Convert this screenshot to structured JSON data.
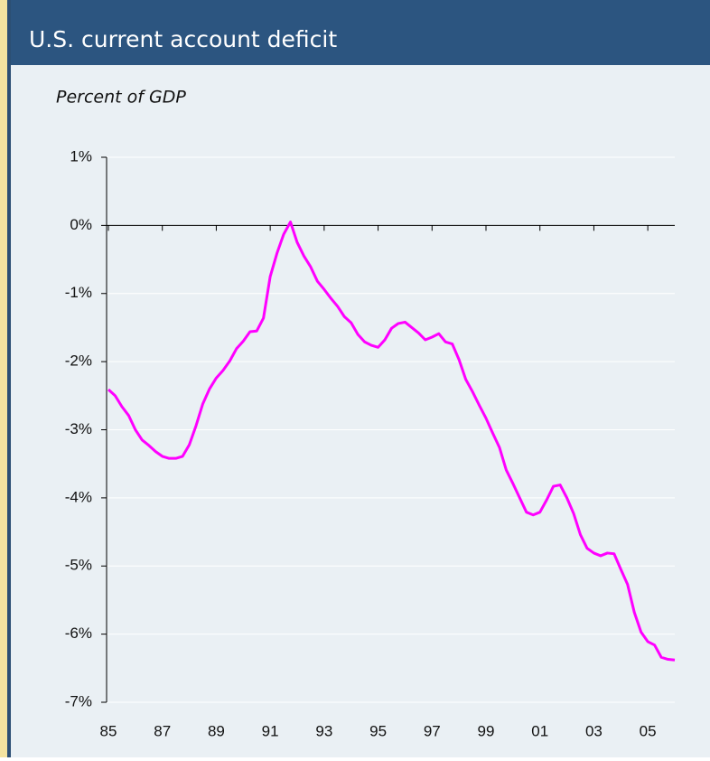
{
  "chart_data": {
    "type": "line",
    "title": "U.S. current account deficit",
    "subtitle": "Percent of GDP",
    "x": [
      1985,
      1985.25,
      1985.5,
      1985.75,
      1986,
      1986.25,
      1986.5,
      1986.75,
      1987,
      1987.25,
      1987.5,
      1987.75,
      1988,
      1988.25,
      1988.5,
      1988.75,
      1989,
      1989.25,
      1989.5,
      1989.75,
      1990,
      1990.25,
      1990.5,
      1990.75,
      1991,
      1991.25,
      1991.5,
      1991.75,
      1992,
      1992.25,
      1992.5,
      1992.75,
      1993,
      1993.25,
      1993.5,
      1993.75,
      1994,
      1994.25,
      1994.5,
      1994.75,
      1995,
      1995.25,
      1995.5,
      1995.75,
      1996,
      1996.25,
      1996.5,
      1996.75,
      1997,
      1997.25,
      1997.5,
      1997.75,
      1998,
      1998.25,
      1998.5,
      1998.75,
      1999,
      1999.25,
      1999.5,
      1999.75,
      2000,
      2000.25,
      2000.5,
      2000.75,
      2001,
      2001.25,
      2001.5,
      2001.75,
      2002,
      2002.25,
      2002.5,
      2002.75,
      2003,
      2003.25,
      2003.5,
      2003.75,
      2004,
      2004.25,
      2004.5,
      2004.75,
      2005,
      2005.25,
      2005.5,
      2005.75,
      2006
    ],
    "values": [
      -2.41,
      -2.5,
      -2.66,
      -2.79,
      -3.0,
      -3.15,
      -3.23,
      -3.32,
      -3.39,
      -3.42,
      -3.42,
      -3.39,
      -3.22,
      -2.94,
      -2.62,
      -2.4,
      -2.24,
      -2.13,
      -1.99,
      -1.81,
      -1.7,
      -1.56,
      -1.55,
      -1.36,
      -0.75,
      -0.41,
      -0.13,
      0.05,
      -0.25,
      -0.45,
      -0.61,
      -0.82,
      -0.94,
      -1.07,
      -1.19,
      -1.34,
      -1.43,
      -1.6,
      -1.71,
      -1.76,
      -1.79,
      -1.68,
      -1.51,
      -1.44,
      -1.42,
      -1.5,
      -1.58,
      -1.68,
      -1.64,
      -1.59,
      -1.71,
      -1.74,
      -1.97,
      -2.26,
      -2.44,
      -2.64,
      -2.83,
      -3.05,
      -3.26,
      -3.59,
      -3.79,
      -4.0,
      -4.21,
      -4.25,
      -4.21,
      -4.03,
      -3.83,
      -3.81,
      -4.0,
      -4.23,
      -4.54,
      -4.74,
      -4.81,
      -4.85,
      -4.81,
      -4.82,
      -5.05,
      -5.27,
      -5.68,
      -5.97,
      -6.11,
      -6.16,
      -6.34,
      -6.37,
      -6.38
    ],
    "color": "#ff00ff",
    "xlim": [
      1985,
      2006
    ],
    "xticks": [
      {
        "value": 1985,
        "label": "85"
      },
      {
        "value": 1987,
        "label": "87"
      },
      {
        "value": 1989,
        "label": "89"
      },
      {
        "value": 1991,
        "label": "91"
      },
      {
        "value": 1993,
        "label": "93"
      },
      {
        "value": 1995,
        "label": "95"
      },
      {
        "value": 1997,
        "label": "97"
      },
      {
        "value": 1999,
        "label": "99"
      },
      {
        "value": 2001,
        "label": "01"
      },
      {
        "value": 2003,
        "label": "03"
      },
      {
        "value": 2005,
        "label": "05"
      }
    ],
    "ylim": [
      -7,
      1
    ],
    "yticks": [
      {
        "value": 1,
        "label": "1%"
      },
      {
        "value": 0,
        "label": "0%"
      },
      {
        "value": -1,
        "label": "-1%"
      },
      {
        "value": -2,
        "label": "-2%"
      },
      {
        "value": -3,
        "label": "-3%"
      },
      {
        "value": -4,
        "label": "-4%"
      },
      {
        "value": -5,
        "label": "-5%"
      },
      {
        "value": -6,
        "label": "-6%"
      },
      {
        "value": -7,
        "label": "-7%"
      }
    ],
    "grid": true
  }
}
